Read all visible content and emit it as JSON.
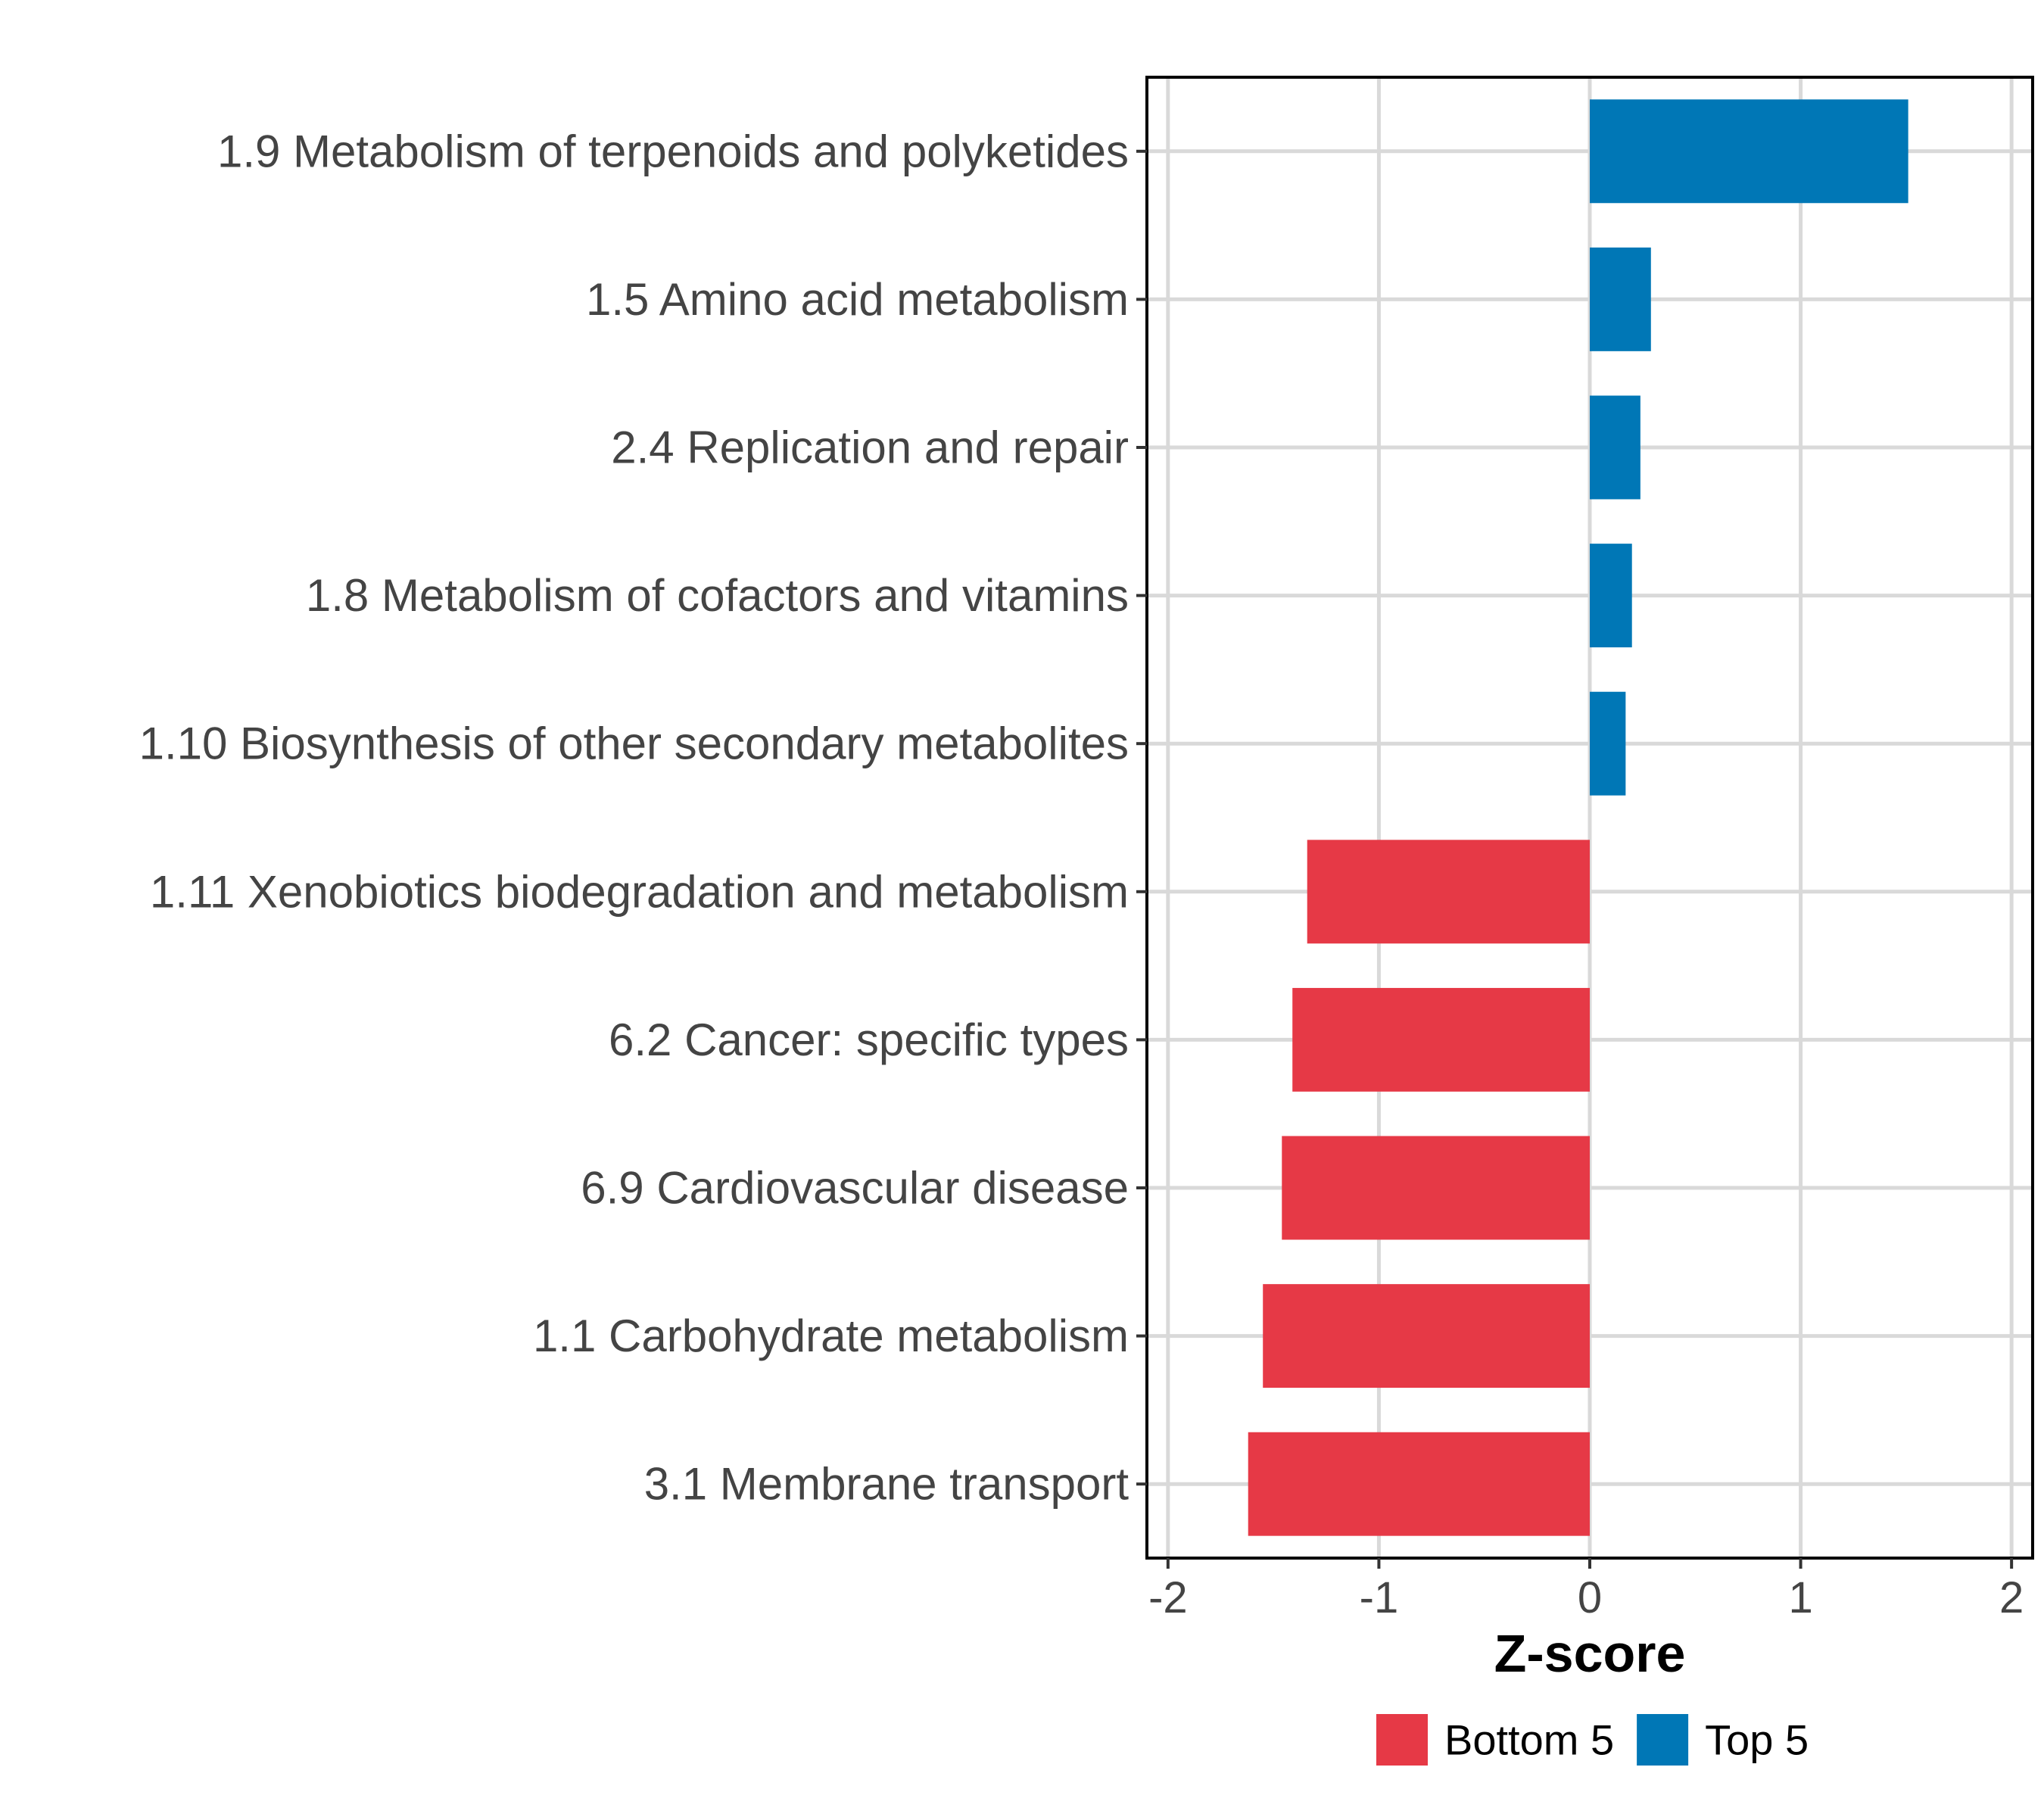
{
  "chart_data": {
    "type": "bar",
    "orientation": "horizontal",
    "title": "",
    "xlabel": "Z-score",
    "ylabel": "",
    "xlim": [
      -2.1,
      2.1
    ],
    "xticks": [
      -2,
      -1,
      0,
      1,
      2
    ],
    "xtick_labels": [
      "-2",
      "-1",
      "0",
      "1",
      "2"
    ],
    "grid": true,
    "legend_position": "bottom",
    "categories": [
      "1.9 Metabolism of terpenoids and polyketides",
      "1.5 Amino acid metabolism",
      "2.4 Replication and repair",
      "1.8 Metabolism of cofactors and vitamins",
      "1.10 Biosynthesis of other secondary metabolites",
      "1.11 Xenobiotics biodegradation and metabolism",
      "6.2 Cancer: specific types",
      "6.9 Cardiovascular disease",
      "1.1 Carbohydrate metabolism",
      "3.1 Membrane transport"
    ],
    "values": [
      1.51,
      0.29,
      0.24,
      0.2,
      0.17,
      -1.34,
      -1.41,
      -1.46,
      -1.55,
      -1.62
    ],
    "groups": [
      "Top 5",
      "Top 5",
      "Top 5",
      "Top 5",
      "Top 5",
      "Bottom 5",
      "Bottom 5",
      "Bottom 5",
      "Bottom 5",
      "Bottom 5"
    ],
    "legend": [
      {
        "name": "Bottom 5",
        "color": "#E63946"
      },
      {
        "name": "Top 5",
        "color": "#0077B6"
      }
    ]
  }
}
